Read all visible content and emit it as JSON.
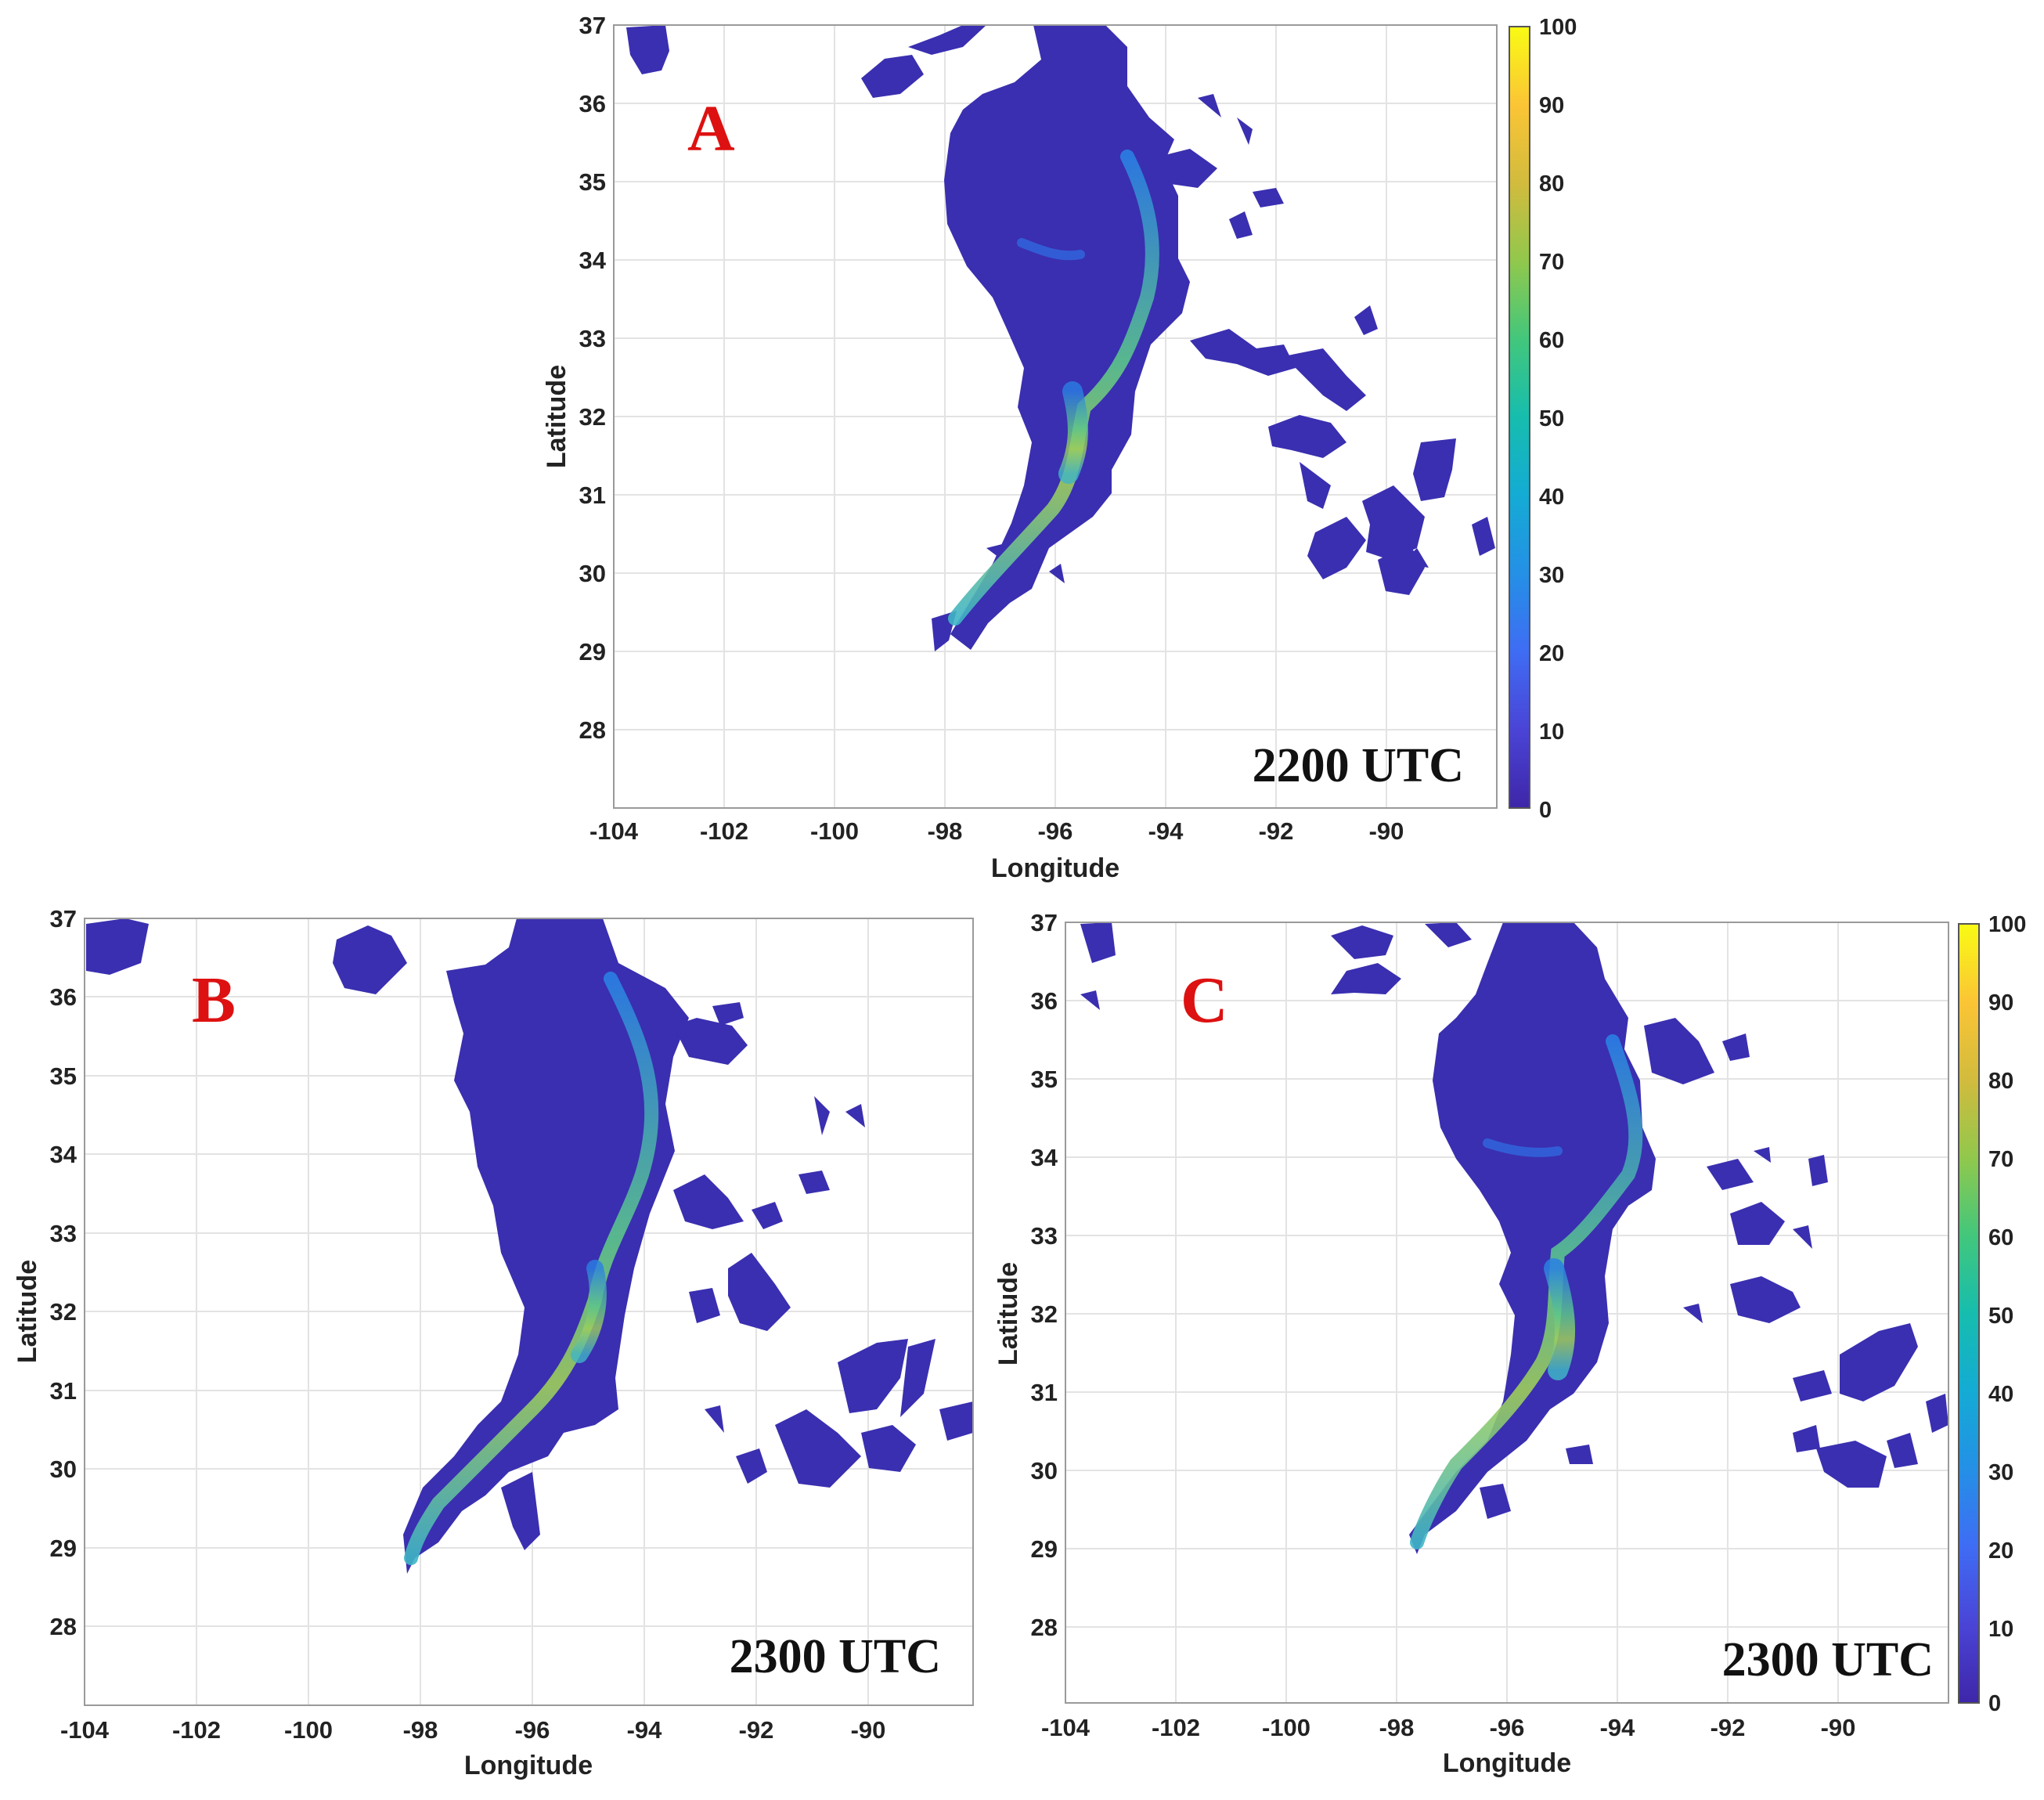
{
  "panels": [
    {
      "id": "A",
      "letter": "A",
      "timestamp": "2200 UTC",
      "xlabel": "Longitude",
      "ylabel": "Latitude"
    },
    {
      "id": "B",
      "letter": "B",
      "timestamp": "2300 UTC",
      "xlabel": "Longitude",
      "ylabel": "Latitude"
    },
    {
      "id": "C",
      "letter": "C",
      "timestamp": "2300 UTC",
      "xlabel": "Longitude",
      "ylabel": "Latitude"
    }
  ],
  "axes": {
    "x_ticks": [
      "-104",
      "-102",
      "-100",
      "-98",
      "-96",
      "-94",
      "-92",
      "-90"
    ],
    "y_ticks": [
      "37",
      "36",
      "35",
      "34",
      "33",
      "32",
      "31",
      "30",
      "29",
      "28"
    ],
    "xlim": [
      -104,
      -88.2
    ],
    "ylim": [
      27,
      37
    ]
  },
  "colorbar": {
    "ticks": [
      "100",
      "90",
      "80",
      "70",
      "60",
      "50",
      "40",
      "30",
      "20",
      "10",
      "0"
    ],
    "range": [
      0,
      100
    ],
    "colors": [
      "#3e26a8",
      "#4a44d6",
      "#3f6cf4",
      "#2490e6",
      "#14abd4",
      "#16bdae",
      "#42c77c",
      "#91c84c",
      "#d2bb3d",
      "#fbc535",
      "#f9fb14"
    ]
  }
}
